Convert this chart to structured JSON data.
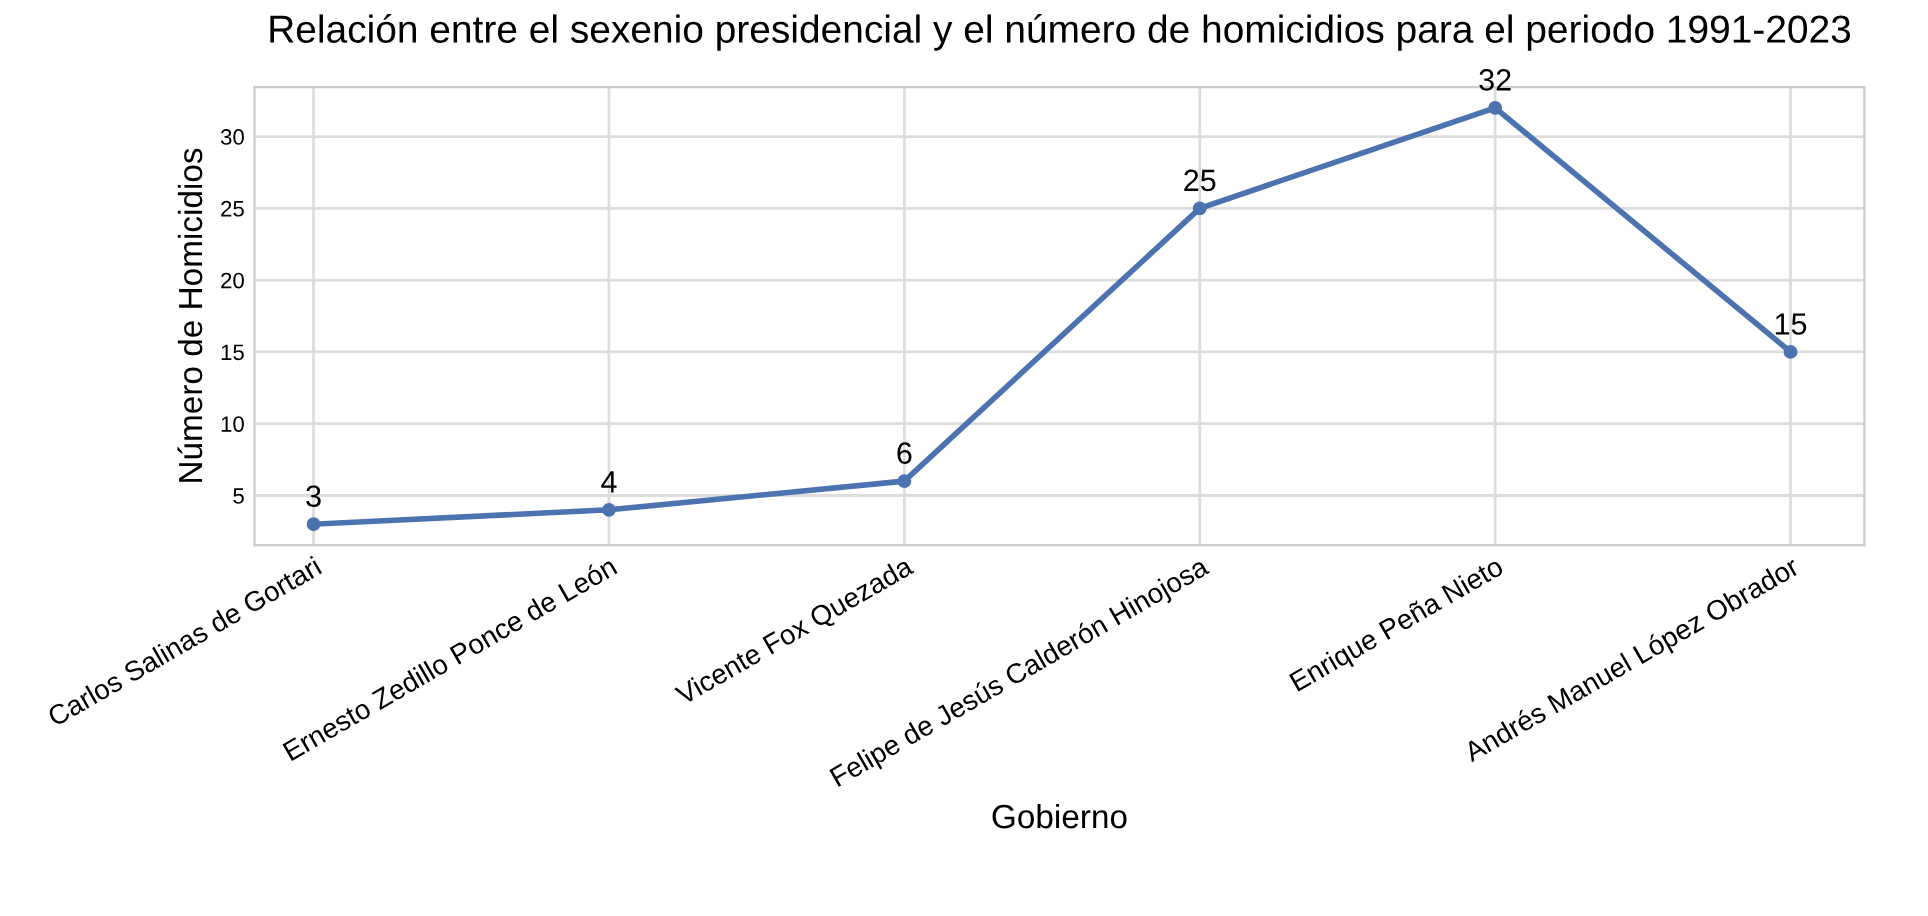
{
  "chart_data": {
    "type": "line",
    "title": "Relación entre el sexenio presidencial y el número de homicidios para el periodo 1991-2023",
    "xlabel": "Gobierno",
    "ylabel": "Número de Homicidios",
    "categories": [
      "Carlos Salinas de Gortari",
      "Ernesto Zedillo Ponce de León",
      "Vicente Fox Quezada",
      "Felipe de Jesús Calderón Hinojosa",
      "Enrique Peña Nieto",
      "Andrés Manuel López Obrador"
    ],
    "series": [
      {
        "color": "#4c72b0",
        "values": [
          3,
          4,
          6,
          25,
          32,
          15
        ]
      }
    ],
    "ylim": [
      1.55,
      33.45
    ],
    "yticks": [
      5,
      10,
      15,
      20,
      25,
      30
    ],
    "grid": true,
    "marker": "circle",
    "line_style": "solid",
    "data_labels": true
  }
}
